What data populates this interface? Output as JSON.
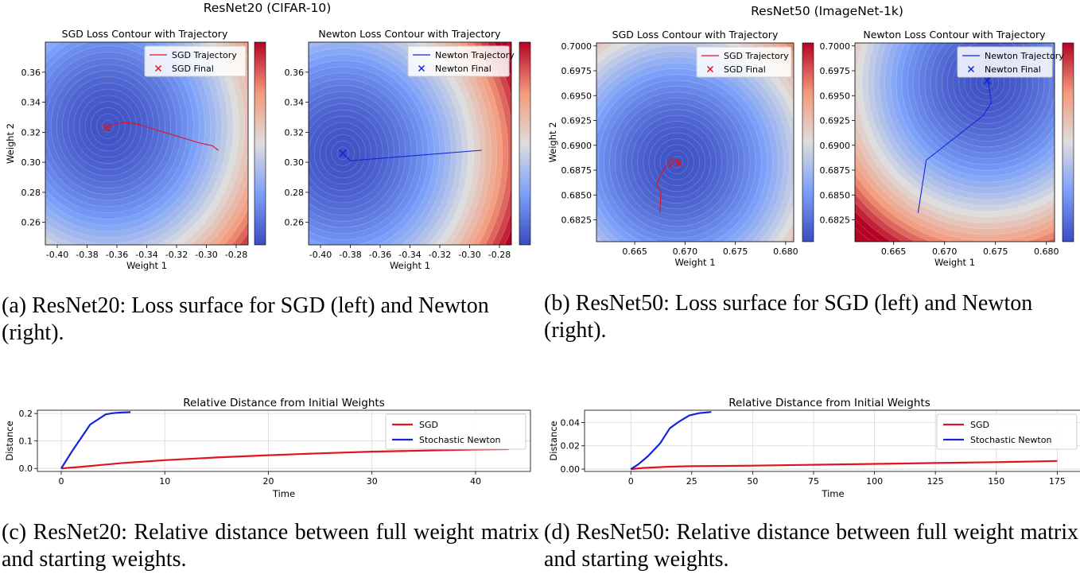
{
  "figure_a": {
    "suptitle": "ResNet20 (CIFAR-10)",
    "caption": "(a) ResNet20: Loss surface for SGD (left) and Newton (right)."
  },
  "figure_b": {
    "suptitle": "ResNet50 (ImageNet-1k)",
    "caption": "(b) ResNet50: Loss surface for SGD (left) and Newton (right)."
  },
  "figure_c": {
    "caption": "(c) ResNet20: Relative distance between full weight matrix and starting weights."
  },
  "figure_d": {
    "caption": "(d) ResNet50: Relative distance between full weight matrix and starting weights."
  },
  "colors": {
    "sgd": "#e0141e",
    "newton": "#1226d6",
    "cmap_low": "#3b4cc0",
    "cmap_mid": "#dddddd",
    "cmap_high": "#b40426"
  },
  "chart_data": [
    {
      "id": "a-sgd",
      "type": "contour",
      "title": "SGD Loss Contour with Trajectory",
      "xlabel": "Weight 1",
      "ylabel": "Weight 2",
      "xlim": [
        -0.408,
        -0.272
      ],
      "ylim": [
        0.245,
        0.38
      ],
      "xticks": [
        "-0.40",
        "-0.38",
        "-0.36",
        "-0.34",
        "-0.32",
        "-0.30",
        "-0.28"
      ],
      "xtick_values": [
        -0.4,
        -0.38,
        -0.36,
        -0.34,
        -0.32,
        -0.3,
        -0.28
      ],
      "yticks": [
        "0.26",
        "0.28",
        "0.30",
        "0.32",
        "0.34",
        "0.36"
      ],
      "ytick_values": [
        0.26,
        0.28,
        0.3,
        0.32,
        0.34,
        0.36
      ],
      "minimum": [
        -0.366,
        0.324
      ],
      "radius_x": 0.13,
      "radius_y": 0.14,
      "legend": [
        "SGD Trajectory",
        "SGD Final"
      ],
      "series_color": "sgd",
      "trajectory": [
        [
          -0.292,
          0.308
        ],
        [
          -0.296,
          0.311
        ],
        [
          -0.305,
          0.313
        ],
        [
          -0.315,
          0.316
        ],
        [
          -0.325,
          0.319
        ],
        [
          -0.335,
          0.322
        ],
        [
          -0.345,
          0.325
        ],
        [
          -0.352,
          0.3265
        ],
        [
          -0.358,
          0.326
        ],
        [
          -0.363,
          0.325
        ],
        [
          -0.366,
          0.323
        ]
      ],
      "final": [
        -0.367,
        0.323
      ]
    },
    {
      "id": "a-newton",
      "type": "contour",
      "title": "Newton Loss Contour with Trajectory",
      "xlabel": "Weight 1",
      "ylabel": "",
      "xlim": [
        -0.408,
        -0.272
      ],
      "ylim": [
        0.245,
        0.38
      ],
      "xticks": [
        "-0.40",
        "-0.38",
        "-0.36",
        "-0.34",
        "-0.32",
        "-0.30",
        "-0.28"
      ],
      "xtick_values": [
        -0.4,
        -0.38,
        -0.36,
        -0.34,
        -0.32,
        -0.3,
        -0.28
      ],
      "yticks": [
        "0.26",
        "0.28",
        "0.30",
        "0.32",
        "0.34",
        "0.36"
      ],
      "ytick_values": [
        0.26,
        0.28,
        0.3,
        0.32,
        0.34,
        0.36
      ],
      "minimum": [
        -0.385,
        0.306
      ],
      "radius_x": 0.13,
      "radius_y": 0.14,
      "legend": [
        "Newton Trajectory",
        "Newton Final"
      ],
      "series_color": "newton",
      "trajectory": [
        [
          -0.292,
          0.308
        ],
        [
          -0.38,
          0.301
        ],
        [
          -0.385,
          0.306
        ]
      ],
      "final": [
        -0.385,
        0.306
      ]
    },
    {
      "id": "b-sgd",
      "type": "contour",
      "title": "SGD Loss Contour with Trajectory",
      "xlabel": "Weight 1",
      "ylabel": "Weight 2",
      "xlim": [
        0.6612,
        0.6808
      ],
      "ylim": [
        0.6803,
        0.7003
      ],
      "xticks": [
        "0.665",
        "0.670",
        "0.675",
        "0.680"
      ],
      "xtick_values": [
        0.665,
        0.67,
        0.675,
        0.68
      ],
      "yticks": [
        "0.6825",
        "0.6850",
        "0.6875",
        "0.6900",
        "0.6925",
        "0.6950",
        "0.6975",
        "0.7000"
      ],
      "ytick_values": [
        0.6825,
        0.685,
        0.6875,
        0.69,
        0.6925,
        0.695,
        0.6975,
        0.7
      ],
      "minimum": [
        0.6692,
        0.6883
      ],
      "radius_x": 0.019,
      "radius_y": 0.02,
      "legend": [
        "SGD Trajectory",
        "SGD Final"
      ],
      "series_color": "sgd",
      "trajectory": [
        [
          0.6675,
          0.6832
        ],
        [
          0.6676,
          0.6852
        ],
        [
          0.6672,
          0.6862
        ],
        [
          0.6677,
          0.6872
        ],
        [
          0.6684,
          0.6884
        ],
        [
          0.6688,
          0.6888
        ],
        [
          0.6685,
          0.6878
        ],
        [
          0.6692,
          0.6886
        ],
        [
          0.6694,
          0.6882
        ]
      ],
      "final": [
        0.6694,
        0.6882
      ]
    },
    {
      "id": "b-newton",
      "type": "contour",
      "title": "Newton Loss Contour with Trajectory",
      "xlabel": "Weight 1",
      "ylabel": "",
      "xlim": [
        0.6612,
        0.6808
      ],
      "ylim": [
        0.6803,
        0.7003
      ],
      "xticks": [
        "0.665",
        "0.670",
        "0.675",
        "0.680"
      ],
      "xtick_values": [
        0.665,
        0.67,
        0.675,
        0.68
      ],
      "yticks": [
        "0.6825",
        "0.6850",
        "0.6875",
        "0.6900",
        "0.6925",
        "0.6950",
        "0.6975",
        "0.7000"
      ],
      "ytick_values": [
        0.6825,
        0.685,
        0.6875,
        0.69,
        0.6925,
        0.695,
        0.6975,
        0.7
      ],
      "minimum": [
        0.6742,
        0.6963
      ],
      "radius_x": 0.019,
      "radius_y": 0.02,
      "legend": [
        "Newton Trajectory",
        "Newton Final"
      ],
      "series_color": "newton",
      "trajectory": [
        [
          0.6674,
          0.6832
        ],
        [
          0.6682,
          0.6885
        ],
        [
          0.6738,
          0.693
        ],
        [
          0.6746,
          0.6943
        ],
        [
          0.6744,
          0.6956
        ],
        [
          0.6742,
          0.6968
        ],
        [
          0.674,
          0.6972
        ],
        [
          0.6745,
          0.6975
        ],
        [
          0.6742,
          0.6965
        ]
      ],
      "final": [
        0.6742,
        0.6965
      ]
    },
    {
      "id": "c-dist",
      "type": "line",
      "title": "Relative Distance from Initial Weights",
      "xlabel": "Time",
      "ylabel": "Distance",
      "xlim": [
        -2.3,
        45.3
      ],
      "ylim": [
        -0.011,
        0.212
      ],
      "xticks": [
        "0",
        "10",
        "20",
        "30",
        "40"
      ],
      "xtick_values": [
        0,
        10,
        20,
        30,
        40
      ],
      "yticks": [
        "0.0",
        "0.1",
        "0.2"
      ],
      "ytick_values": [
        0.0,
        0.1,
        0.2
      ],
      "series": [
        {
          "name": "SGD",
          "color": "sgd",
          "x": [
            0,
            2,
            4,
            6,
            8,
            10,
            15,
            20,
            25,
            30,
            35,
            40,
            43.2
          ],
          "y": [
            0,
            0.006,
            0.013,
            0.02,
            0.025,
            0.03,
            0.04,
            0.048,
            0.055,
            0.061,
            0.065,
            0.069,
            0.07
          ]
        },
        {
          "name": "Stochastic Newton",
          "color": "newton",
          "x": [
            0,
            1,
            2.8,
            4.3,
            4.9,
            5.5,
            6.7
          ],
          "y": [
            0,
            0.06,
            0.16,
            0.197,
            0.201,
            0.203,
            0.205
          ]
        }
      ]
    },
    {
      "id": "d-dist",
      "type": "line",
      "title": "Relative Distance from Initial Weights",
      "xlabel": "Time",
      "ylabel": "Distance",
      "xlim": [
        -19,
        185
      ],
      "ylim": [
        -0.002,
        0.0505
      ],
      "xticks": [
        "0",
        "25",
        "50",
        "75",
        "100",
        "125",
        "150",
        "175"
      ],
      "xtick_values": [
        0,
        25,
        50,
        75,
        100,
        125,
        150,
        175
      ],
      "yticks": [
        "0.00",
        "0.02",
        "0.04"
      ],
      "ytick_values": [
        0,
        0.02,
        0.04
      ],
      "series": [
        {
          "name": "SGD",
          "color": "sgd",
          "x": [
            0,
            5,
            15,
            25,
            50,
            75,
            100,
            125,
            150,
            165,
            175
          ],
          "y": [
            0,
            0.001,
            0.002,
            0.0025,
            0.003,
            0.0037,
            0.0045,
            0.0052,
            0.006,
            0.0065,
            0.007
          ]
        },
        {
          "name": "Stochastic Newton",
          "color": "newton",
          "x": [
            0,
            3,
            7,
            12,
            16,
            20,
            24,
            28,
            33
          ],
          "y": [
            0,
            0.004,
            0.011,
            0.022,
            0.035,
            0.041,
            0.046,
            0.048,
            0.049
          ]
        }
      ]
    }
  ]
}
